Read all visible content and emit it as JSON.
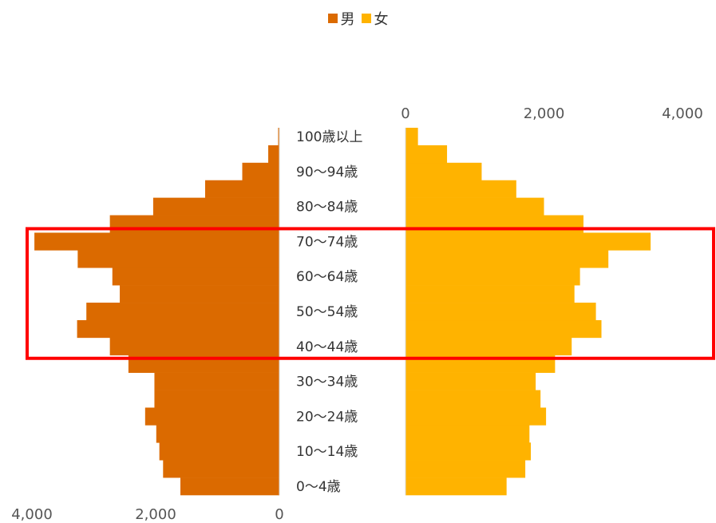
{
  "chart_data": {
    "type": "bar",
    "categories": [
      "0〜4歳",
      "5〜9歳",
      "10〜14歳",
      "15〜19歳",
      "20〜24歳",
      "25〜29歳",
      "30〜34歳",
      "35〜39歳",
      "40〜44歳",
      "45〜49歳",
      "50〜54歳",
      "55〜59歳",
      "60〜64歳",
      "65〜69歳",
      "70〜74歳",
      "75〜79歳",
      "80〜84歳",
      "85〜89歳",
      "90〜94歳",
      "95〜99歳",
      "100歳以上"
    ],
    "visible_category_labels": [
      "0〜4歳",
      "10〜14歳",
      "20〜24歳",
      "30〜34歳",
      "40〜44歳",
      "50〜54歳",
      "60〜64歳",
      "70〜74歳",
      "80〜84歳",
      "90〜94歳",
      "100歳以上"
    ],
    "series": [
      {
        "name": "男",
        "color": "#DB6A00",
        "values": [
          1600,
          1880,
          1940,
          1990,
          2170,
          2020,
          2020,
          2440,
          2740,
          3270,
          3120,
          2580,
          2700,
          3260,
          3960,
          2740,
          2040,
          1200,
          600,
          180,
          20
        ]
      },
      {
        "name": "女",
        "color": "#FFB300",
        "values": [
          1460,
          1730,
          1810,
          1790,
          2030,
          1950,
          1880,
          2160,
          2400,
          2830,
          2750,
          2440,
          2520,
          2930,
          3540,
          2570,
          2000,
          1600,
          1100,
          600,
          180
        ]
      }
    ],
    "xlim_left": [
      0,
      4000
    ],
    "xlim_right": [
      0,
      4000
    ],
    "left_ticks": [
      "4,000",
      "2,000",
      "0"
    ],
    "right_ticks": [
      "0",
      "2,000",
      "4,000"
    ],
    "legend_position": "top-center",
    "highlight_range": {
      "from": "40〜44歳",
      "to": "70〜74歳",
      "color": "#FF0000"
    }
  }
}
